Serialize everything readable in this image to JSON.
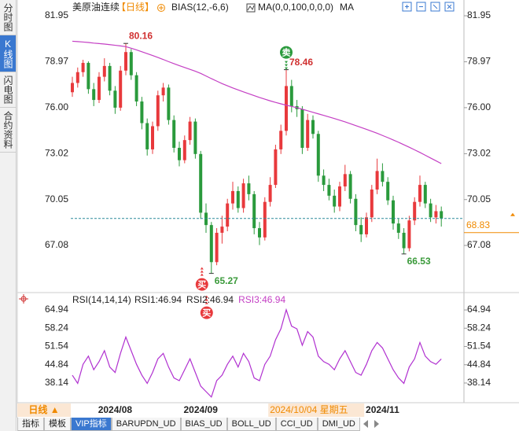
{
  "sidebar": [
    "分时图",
    "K线图",
    "闪电图",
    "合约资料"
  ],
  "sidebar_active": 1,
  "chart_data": [
    {
      "type": "candlestick",
      "title": "美原油连续",
      "period": "【日线】",
      "indicators": [
        "BIAS(12,-6,6)",
        "MA(0,0,100,0,0,0)"
      ],
      "categories": [
        null,
        null,
        null,
        null,
        null,
        null,
        null,
        null,
        "2024/08",
        null,
        null,
        null,
        null,
        null,
        null,
        null,
        null,
        null,
        null,
        null,
        null,
        null,
        null,
        null,
        "2024/09",
        null,
        null,
        null,
        null,
        null,
        null,
        null,
        null,
        null,
        null,
        null,
        null,
        null,
        null,
        "2024/10/04 星期五",
        null,
        null,
        null,
        null,
        null,
        null,
        null,
        null,
        null,
        null,
        null,
        null,
        null,
        null,
        null,
        null,
        null,
        null,
        "2024/11",
        null,
        null,
        null,
        null,
        null,
        null,
        null,
        null,
        null,
        null,
        null
      ],
      "highlight_category": 39,
      "open": [
        77.0,
        77.6,
        78.3,
        78.9,
        77.2,
        76.5,
        78.0,
        78.7,
        77.1,
        76.0,
        78.4,
        79.6,
        78.1,
        76.4,
        75.0,
        73.3,
        74.8,
        76.8,
        77.3,
        75.2,
        73.4,
        72.6,
        73.9,
        75.1,
        73.0,
        69.2,
        68.4,
        66.0,
        67.9,
        68.3,
        69.8,
        70.6,
        69.5,
        71.1,
        70.4,
        68.2,
        67.6,
        69.9,
        71.0,
        73.3,
        74.5,
        77.4,
        76.1,
        75.9,
        73.4,
        75.2,
        74.3,
        71.6,
        71.0,
        70.3,
        69.6,
        70.9,
        71.7,
        70.1,
        68.4,
        67.8,
        68.9,
        70.7,
        71.9,
        71.2,
        70.0,
        68.5,
        67.9,
        66.9,
        68.7,
        69.9,
        71.0,
        69.8,
        68.9,
        69.3
      ],
      "high": [
        78.0,
        78.6,
        79.1,
        79.0,
        77.6,
        78.3,
        79.2,
        78.9,
        77.4,
        78.7,
        80.16,
        79.8,
        78.3,
        76.7,
        75.3,
        75.1,
        77.1,
        77.6,
        77.5,
        75.5,
        73.8,
        74.2,
        75.4,
        75.3,
        73.2,
        69.8,
        68.6,
        68.2,
        69.0,
        70.1,
        71.2,
        70.9,
        71.4,
        71.6,
        70.6,
        68.6,
        70.2,
        71.5,
        73.6,
        74.9,
        78.46,
        77.8,
        76.5,
        76.1,
        75.6,
        75.5,
        74.5,
        72.0,
        71.4,
        70.7,
        71.2,
        72.3,
        71.9,
        70.4,
        68.9,
        69.2,
        71.0,
        72.7,
        72.4,
        71.5,
        70.3,
        68.8,
        68.2,
        69.0,
        70.2,
        71.6,
        71.2,
        70.1,
        69.7,
        69.6
      ],
      "low": [
        76.7,
        77.3,
        78.0,
        76.9,
        76.1,
        76.3,
        77.7,
        76.8,
        75.6,
        75.8,
        78.1,
        77.8,
        76.1,
        74.6,
        72.9,
        73.0,
        74.5,
        76.4,
        74.9,
        73.1,
        72.2,
        72.4,
        73.6,
        72.7,
        68.8,
        67.9,
        65.27,
        65.8,
        67.2,
        68.0,
        69.4,
        69.2,
        69.2,
        70.0,
        67.8,
        67.1,
        67.4,
        69.6,
        70.8,
        73.0,
        74.2,
        75.7,
        75.4,
        73.0,
        73.2,
        74.0,
        71.2,
        70.6,
        70.0,
        69.2,
        69.3,
        70.6,
        69.8,
        68.0,
        67.3,
        67.6,
        68.6,
        70.4,
        70.9,
        69.7,
        68.1,
        67.5,
        66.53,
        66.7,
        68.4,
        69.6,
        69.5,
        68.6,
        68.5,
        68.3
      ],
      "close": [
        77.6,
        78.3,
        78.9,
        77.2,
        76.5,
        78.0,
        78.7,
        77.1,
        76.0,
        78.4,
        79.6,
        78.1,
        76.4,
        75.0,
        73.3,
        74.8,
        76.8,
        77.3,
        75.2,
        73.4,
        72.6,
        73.9,
        75.1,
        73.0,
        69.2,
        68.4,
        66.0,
        67.9,
        68.3,
        69.8,
        70.6,
        69.5,
        71.1,
        70.4,
        68.2,
        67.6,
        69.9,
        71.0,
        73.3,
        74.5,
        77.4,
        76.1,
        75.9,
        73.4,
        75.2,
        74.3,
        71.6,
        71.0,
        70.3,
        69.6,
        70.9,
        71.7,
        70.1,
        68.4,
        67.8,
        68.9,
        70.7,
        71.9,
        71.2,
        70.0,
        68.5,
        67.9,
        66.9,
        68.7,
        69.9,
        71.0,
        69.8,
        68.9,
        69.3,
        68.83
      ],
      "up_color": "#e8393c",
      "down_color": "#2a9a3c",
      "last_price_color": "#f08a00",
      "series": [
        {
          "name": "MA",
          "color": "#c43fc4",
          "values": [
            80.3,
            80.28,
            80.25,
            80.22,
            80.18,
            80.15,
            80.12,
            80.08,
            80.04,
            80.0,
            79.95,
            79.85,
            79.74,
            79.62,
            79.5,
            79.38,
            79.25,
            79.12,
            78.98,
            78.85,
            78.72,
            78.6,
            78.48,
            78.36,
            78.22,
            78.05,
            77.88,
            77.72,
            77.56,
            77.42,
            77.28,
            77.15,
            77.02,
            76.9,
            76.78,
            76.66,
            76.55,
            76.44,
            76.34,
            76.25,
            76.16,
            76.08,
            76.0,
            75.9,
            75.8,
            75.7,
            75.6,
            75.5,
            75.4,
            75.3,
            75.19,
            75.08,
            74.96,
            74.84,
            74.72,
            74.6,
            74.47,
            74.34,
            74.2,
            74.06,
            73.91,
            73.76,
            73.6,
            73.44,
            73.27,
            73.1,
            72.92,
            72.74,
            72.56,
            72.38
          ]
        }
      ],
      "annotations": [
        {
          "at": "high",
          "index": 10
        },
        {
          "at": "high",
          "index": 40
        },
        {
          "at": "low",
          "index": 26
        },
        {
          "at": "low",
          "index": 62
        }
      ],
      "signals": [
        {
          "label": "卖",
          "index": 40
        },
        {
          "label": "买",
          "index": 26
        },
        {
          "label": "买",
          "index": 26
        }
      ],
      "ylim": [
        64.13,
        82.36
      ],
      "yticks": [
        67.08,
        70.05,
        73.02,
        {
          "value": 76.0,
          "label": "76.00"
        },
        78.97,
        81.95
      ]
    },
    {
      "type": "line",
      "title": "RSI(14,14,14)",
      "legend": [
        {
          "label": "RSI1:46.94",
          "color": "#222222"
        },
        {
          "label": "RSI2:46.94",
          "color": "#222222"
        },
        {
          "label": "RSI3:46.94",
          "color": "#c43fc4"
        }
      ],
      "series": [
        {
          "color": "#b030d0",
          "values": [
            41,
            38,
            45,
            48,
            43,
            46,
            50,
            44,
            42,
            49,
            55,
            50,
            45,
            41,
            38,
            42,
            47,
            49,
            44,
            40,
            39,
            43,
            47,
            42,
            37,
            35,
            33,
            39,
            41,
            45,
            48,
            44,
            49,
            46,
            40,
            39,
            45,
            48,
            54,
            58,
            65,
            59,
            58,
            52,
            57,
            55,
            48,
            46,
            45,
            43,
            47,
            50,
            46,
            42,
            41,
            45,
            50,
            53,
            51,
            47,
            43,
            40,
            38,
            44,
            47,
            53,
            48,
            46,
            45,
            46.94
          ]
        }
      ],
      "ylim": [
        31.5,
        69.0
      ],
      "yticks": [
        38.14,
        44.84,
        51.54,
        58.24,
        64.94
      ]
    }
  ],
  "period_button": "日线 ▲",
  "toolbar": [
    "指标",
    "模板",
    "VIP指标",
    "BARUPDN_UD",
    "BIAS_UD",
    "BOLL_UD",
    "CCI_UD",
    "DMI_UD"
  ],
  "toolbar_active": 2
}
